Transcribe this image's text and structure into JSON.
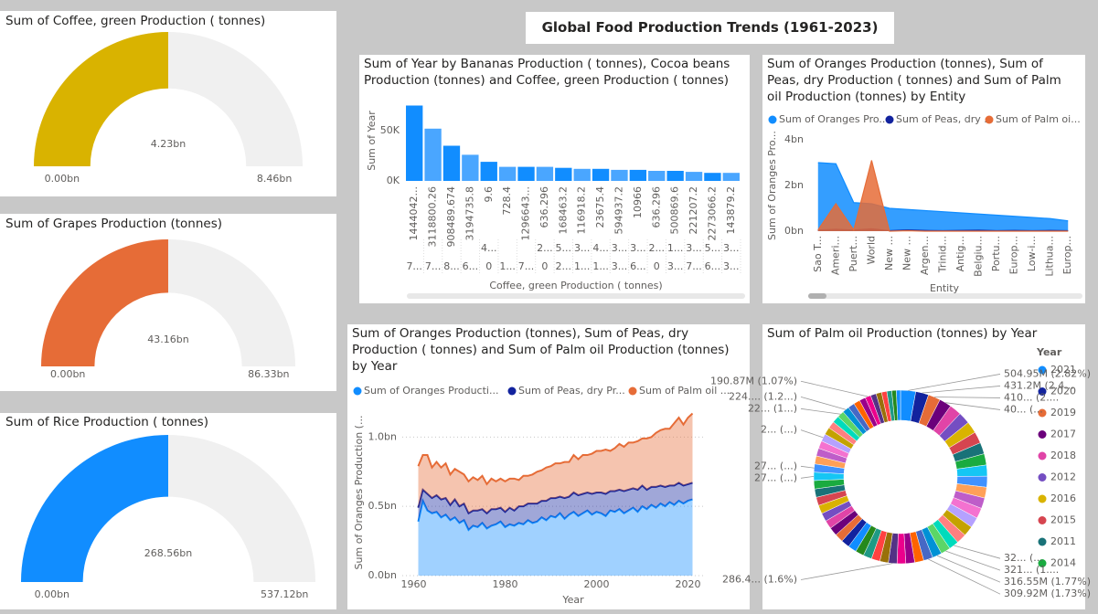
{
  "title": "Global Food Production Trends (1961-2023)",
  "chart_data": [
    {
      "type": "gauge",
      "title": "Sum of Coffee, green Production ( tonnes)",
      "value": 4.23,
      "value_label": "4.23bn",
      "range": [
        0,
        8.46
      ],
      "range_labels": [
        "0.00bn",
        "8.46bn"
      ],
      "color": "#d9b300"
    },
    {
      "type": "gauge",
      "title": "Sum of Grapes Production (tonnes)",
      "value": 43.16,
      "value_label": "43.16bn",
      "range": [
        0,
        86.33
      ],
      "range_labels": [
        "0.00bn",
        "86.33bn"
      ],
      "color": "#e66c37"
    },
    {
      "type": "gauge",
      "title": "Sum of Rice Production ( tonnes)",
      "value": 268.56,
      "value_label": "268.56bn",
      "range": [
        0,
        537.12
      ],
      "range_labels": [
        "0.00bn",
        "537.12bn"
      ],
      "color": "#118dff"
    },
    {
      "type": "bar",
      "title": "Sum of Year by Bananas Production ( tonnes), Cocoa beans Production (tonnes) and Coffee, green Production ( tonnes)",
      "y_label": "Sum of Year",
      "x_label": "Coffee, green Production ( tonnes)",
      "categories": [
        "1444042...",
        "3118800.26",
        "908489.674",
        "3194735.8",
        "9.6",
        "728.4",
        "1296643...",
        "636.296",
        "168463.2",
        "116918.2",
        "23675.4",
        "594937.2",
        "10966",
        "636.296",
        "500869.6",
        "221207.2",
        "2273066.2",
        "143879.2"
      ],
      "categories_2": [
        null,
        null,
        null,
        null,
        "4...",
        null,
        null,
        "2...",
        "5...",
        "3...",
        "4...",
        "3...",
        "3...",
        "2...",
        "1...",
        "3...",
        "5...",
        "3..."
      ],
      "categories_3": [
        "7...",
        "7...",
        "8...",
        "6...",
        "0",
        "1...",
        "7...",
        "0",
        "2...",
        "1...",
        "1...",
        "3...",
        "6...",
        "0",
        "3...",
        "7...",
        "6...",
        "3..."
      ],
      "values": [
        75000,
        52000,
        35000,
        26000,
        19000,
        14000,
        14000,
        14000,
        13000,
        12000,
        12000,
        11000,
        11000,
        10000,
        10000,
        9000,
        8000,
        8000
      ],
      "color": "#118dff",
      "ylim": [
        0,
        80000
      ],
      "yticks": [
        {
          "value": 0,
          "label": "0K"
        },
        {
          "value": 50000,
          "label": "50K"
        }
      ]
    },
    {
      "type": "area",
      "stacked": false,
      "title": "Sum of Oranges Production (tonnes), Sum of Peas, dry Production ( tonnes) and Sum of Palm oil Production (tonnes) by Entity",
      "y_label": "Sum of Oranges Pro...",
      "x_label": "Entity",
      "categories": [
        "Sao T...",
        "Ameri...",
        "Puert...",
        "World",
        "New ...",
        "New ...",
        "Argen...",
        "Trinid...",
        "Antig...",
        "Belgiu...",
        "Portu...",
        "Europ...",
        "Low-i...",
        "Lithua...",
        "Europ..."
      ],
      "series": [
        {
          "name": "Sum of Oranges  Pro...",
          "color": "#118dff",
          "values": [
            3.0,
            2.95,
            1.25,
            1.2,
            1.0,
            0.95,
            0.9,
            0.85,
            0.8,
            0.75,
            0.7,
            0.65,
            0.6,
            0.55,
            0.45
          ]
        },
        {
          "name": "Sum of Peas, dry ...",
          "color": "#12239e",
          "values": [
            0.05,
            0.08,
            0.05,
            0.1,
            0.02,
            0.05,
            0.03,
            0.02,
            0.03,
            0.04,
            0.02,
            0.03,
            0.02,
            0.03,
            0.02
          ]
        },
        {
          "name": "Sum of Palm oi...",
          "color": "#e66c37",
          "values": [
            0.05,
            1.2,
            0.05,
            3.1,
            0.0,
            0.02,
            0.0,
            0.0,
            0.0,
            0.0,
            0.0,
            0.0,
            0.0,
            0.0,
            0.0
          ]
        }
      ],
      "ylim": [
        0,
        4
      ],
      "yticks": [
        {
          "value": 0,
          "label": "0bn"
        },
        {
          "value": 2,
          "label": "2bn"
        },
        {
          "value": 4,
          "label": "4bn"
        }
      ]
    },
    {
      "type": "area",
      "stacked": true,
      "title": "Sum of Oranges Production (tonnes), Sum of Peas, dry Production ( tonnes) and Sum of Palm oil Production (tonnes) by Year",
      "y_label": "Sum of Oranges Production (...",
      "x_label": "Year",
      "x": [
        1961,
        1962,
        1963,
        1964,
        1965,
        1966,
        1967,
        1968,
        1969,
        1970,
        1971,
        1972,
        1973,
        1974,
        1975,
        1976,
        1977,
        1978,
        1979,
        1980,
        1981,
        1982,
        1983,
        1984,
        1985,
        1986,
        1987,
        1988,
        1989,
        1990,
        1991,
        1992,
        1993,
        1994,
        1995,
        1996,
        1997,
        1998,
        1999,
        2000,
        2001,
        2002,
        2003,
        2004,
        2005,
        2006,
        2007,
        2008,
        2009,
        2010,
        2011,
        2012,
        2013,
        2014,
        2015,
        2016,
        2017,
        2018,
        2019,
        2020,
        2021
      ],
      "series": [
        {
          "name": "Sum of Oranges  Producti...",
          "color": "#118dff",
          "values": [
            0.39,
            0.54,
            0.47,
            0.45,
            0.46,
            0.42,
            0.44,
            0.4,
            0.42,
            0.38,
            0.4,
            0.33,
            0.36,
            0.35,
            0.38,
            0.34,
            0.36,
            0.37,
            0.39,
            0.35,
            0.37,
            0.36,
            0.38,
            0.37,
            0.4,
            0.38,
            0.39,
            0.42,
            0.4,
            0.43,
            0.42,
            0.45,
            0.41,
            0.44,
            0.46,
            0.43,
            0.45,
            0.47,
            0.44,
            0.46,
            0.45,
            0.43,
            0.47,
            0.46,
            0.48,
            0.45,
            0.47,
            0.49,
            0.46,
            0.5,
            0.48,
            0.51,
            0.49,
            0.52,
            0.5,
            0.53,
            0.51,
            0.54,
            0.52,
            0.54,
            0.55
          ]
        },
        {
          "name": "Sum of Peas, dry Pr...",
          "color": "#12239e",
          "values": [
            0.1,
            0.08,
            0.12,
            0.11,
            0.12,
            0.13,
            0.12,
            0.11,
            0.13,
            0.12,
            0.12,
            0.12,
            0.11,
            0.12,
            0.1,
            0.11,
            0.12,
            0.11,
            0.1,
            0.11,
            0.12,
            0.11,
            0.12,
            0.13,
            0.12,
            0.14,
            0.13,
            0.12,
            0.14,
            0.13,
            0.14,
            0.12,
            0.15,
            0.13,
            0.14,
            0.15,
            0.14,
            0.13,
            0.15,
            0.14,
            0.15,
            0.16,
            0.14,
            0.15,
            0.14,
            0.16,
            0.15,
            0.14,
            0.16,
            0.15,
            0.14,
            0.13,
            0.15,
            0.13,
            0.14,
            0.12,
            0.14,
            0.13,
            0.13,
            0.12,
            0.12
          ]
        },
        {
          "name": "Sum of Palm oil  ...",
          "color": "#e66c37",
          "values": [
            0.3,
            0.25,
            0.28,
            0.22,
            0.24,
            0.23,
            0.25,
            0.22,
            0.22,
            0.25,
            0.21,
            0.23,
            0.24,
            0.22,
            0.24,
            0.21,
            0.22,
            0.2,
            0.21,
            0.22,
            0.21,
            0.23,
            0.19,
            0.22,
            0.2,
            0.21,
            0.23,
            0.22,
            0.24,
            0.23,
            0.25,
            0.24,
            0.26,
            0.25,
            0.27,
            0.26,
            0.28,
            0.27,
            0.29,
            0.3,
            0.3,
            0.32,
            0.29,
            0.31,
            0.33,
            0.32,
            0.34,
            0.33,
            0.35,
            0.34,
            0.37,
            0.36,
            0.39,
            0.4,
            0.42,
            0.41,
            0.45,
            0.47,
            0.44,
            0.48,
            0.5
          ]
        }
      ],
      "xlim": [
        1957.5,
        2023.5
      ],
      "xticks": [
        1960,
        1980,
        2000,
        2020
      ],
      "ylim": [
        0,
        1.2
      ],
      "yticks": [
        {
          "value": 0,
          "label": "0.0bn"
        },
        {
          "value": 0.5,
          "label": "0.5bn"
        },
        {
          "value": 1,
          "label": "1.0bn"
        }
      ],
      "grid": true
    },
    {
      "type": "donut",
      "title": "Sum of Palm oil Production (tonnes) by Year",
      "legend_title": "Year",
      "categories": [
        "2021",
        "2020",
        "2019",
        "2017",
        "2018",
        "2012",
        "2016",
        "2015",
        "2011",
        "2014",
        null,
        null,
        null,
        null,
        null,
        null,
        null,
        null,
        null,
        null,
        null,
        null,
        null,
        null,
        null,
        null,
        null,
        null,
        null,
        null,
        null,
        null,
        null,
        null,
        null,
        null,
        null,
        null,
        null,
        null,
        null,
        null,
        null,
        null,
        null,
        null,
        null,
        null,
        null,
        null,
        null,
        null,
        null,
        null,
        null,
        null,
        null,
        null,
        null,
        null,
        null
      ],
      "values": [
        504.95,
        431.2,
        410.3,
        404.8,
        400,
        396,
        391,
        386,
        381,
        376,
        371,
        366,
        361,
        356,
        351,
        346,
        340,
        334,
        327.6,
        321.4,
        316.55,
        309.92,
        302,
        296,
        291,
        286.45,
        286,
        285.5,
        285,
        284.5,
        284,
        283.5,
        283,
        282.5,
        282,
        281.5,
        281,
        280,
        279,
        278.5,
        277.6,
        273.1,
        268,
        262,
        257,
        252,
        246,
        240,
        234,
        228.7,
        224.3,
        220,
        214,
        207,
        190.87,
        188,
        184,
        176,
        164,
        150,
        140
      ],
      "value_labels": [
        "504.95M (2.82%)",
        "431.2M (2.4...",
        "410... (2....",
        "40... (...",
        null,
        null,
        null,
        null,
        null,
        null,
        null,
        null,
        null,
        null,
        null,
        null,
        null,
        null,
        "32... (...",
        "321... (1....",
        "316.55M (1.77%)",
        "309.92M (1.73%)",
        null,
        null,
        null,
        "286.4... (1.6%)",
        null,
        null,
        null,
        null,
        null,
        null,
        null,
        null,
        null,
        null,
        null,
        null,
        null,
        null,
        "27... (...)",
        "27... (...)",
        null,
        null,
        null,
        "2... (...)",
        null,
        null,
        null,
        "22... (1...)",
        "224.... (1.2...)",
        null,
        null,
        null,
        "190.87M (1.07%)",
        null,
        null,
        null,
        null,
        null,
        null
      ],
      "palette": [
        "#118dff",
        "#12239e",
        "#e66c37",
        "#6b007b",
        "#e044a7",
        "#744ec2",
        "#d9b300",
        "#d64550",
        "#197278",
        "#1aab40",
        "#15c6f4",
        "#4092ff",
        "#ffa058",
        "#be5dc9",
        "#f472d0",
        "#b5a1ff",
        "#c4a200",
        "#ff8080",
        "#00dbbc",
        "#5bd667",
        "#0091d5",
        "#4668c5",
        "#ff6300",
        "#99008a",
        "#ec008c",
        "#533285",
        "#99700a",
        "#ff4141",
        "#1f9a85",
        "#25891c"
      ]
    }
  ]
}
